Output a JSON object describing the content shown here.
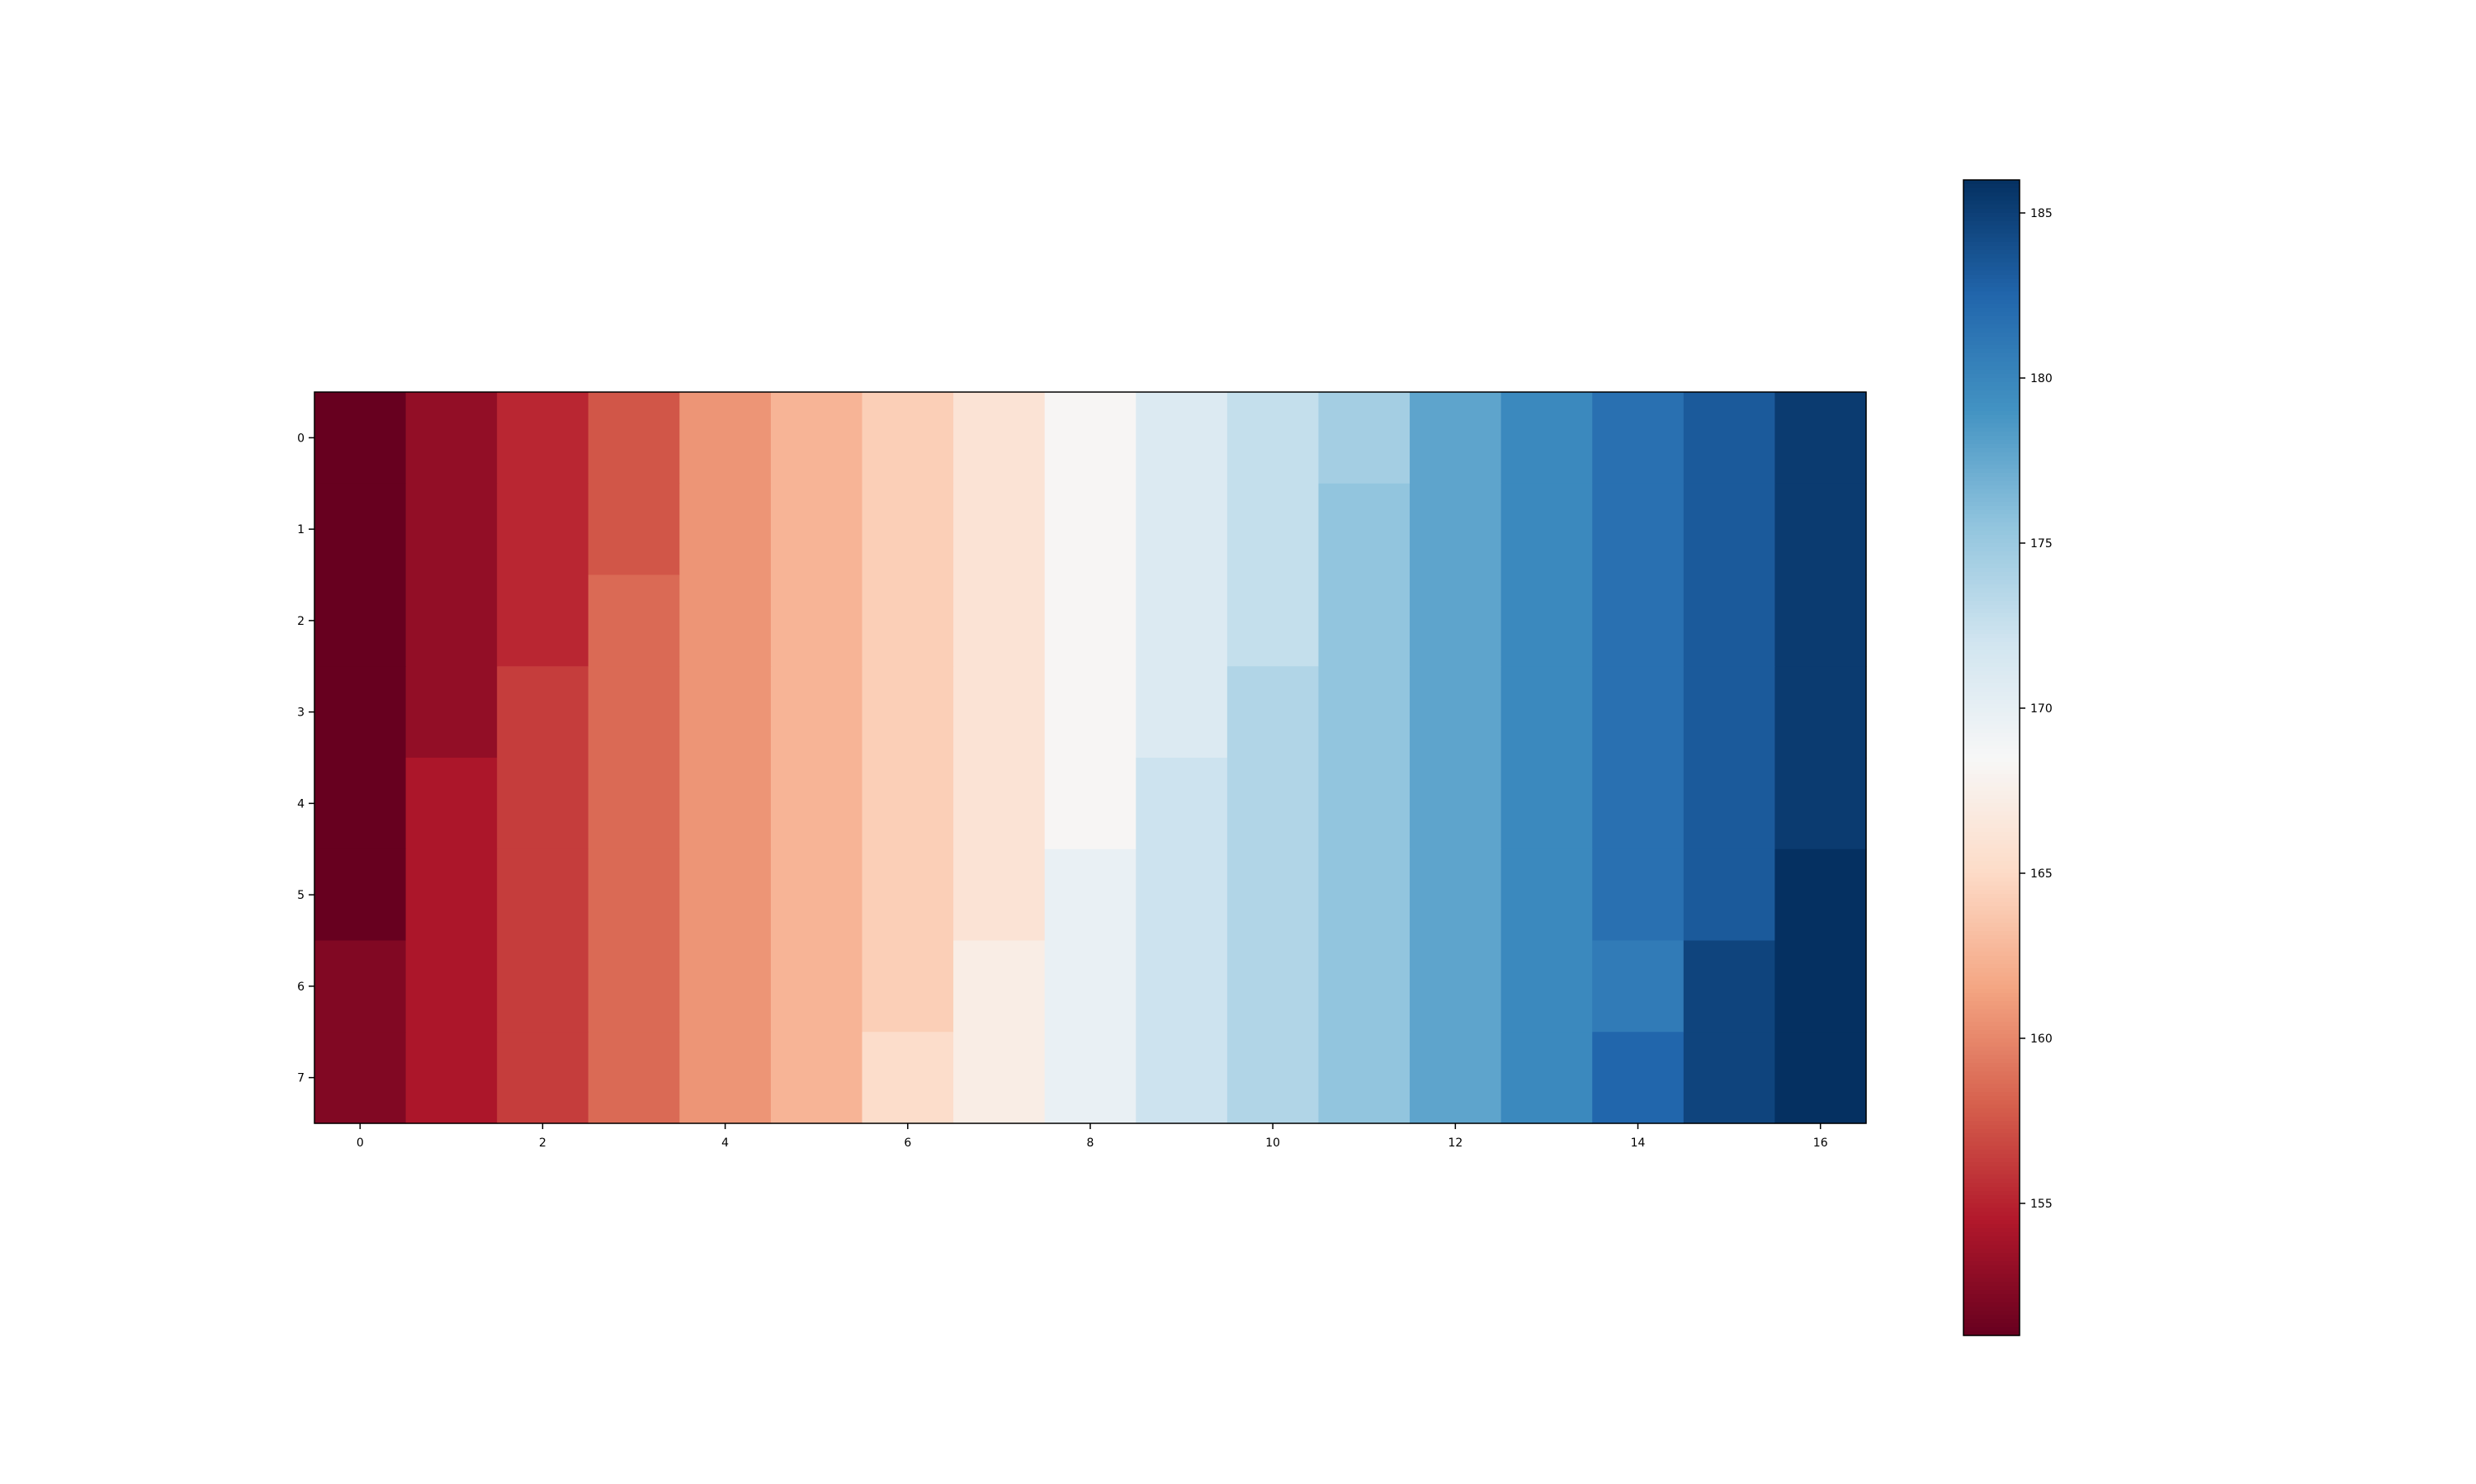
{
  "chart_data": {
    "type": "heatmap",
    "colormap": "RdBu",
    "x_ticks": [
      "0",
      "2",
      "4",
      "6",
      "8",
      "10",
      "12",
      "14",
      "16"
    ],
    "y_ticks": [
      "0",
      "1",
      "2",
      "3",
      "4",
      "5",
      "6",
      "7"
    ],
    "colorbar": {
      "range": [
        151,
        186
      ],
      "ticks": [
        "155",
        "160",
        "165",
        "170",
        "175",
        "180",
        "185"
      ]
    },
    "values": [
      [
        151.0,
        153.0,
        155.2,
        157.5,
        160.7,
        162.5,
        164.2,
        166.0,
        168.3,
        171.0,
        172.7,
        174.5,
        177.8,
        179.8,
        181.7,
        183.3,
        185.3
      ],
      [
        151.0,
        153.0,
        155.2,
        157.5,
        160.7,
        162.5,
        164.2,
        166.0,
        168.3,
        171.0,
        172.7,
        175.5,
        177.8,
        179.8,
        181.7,
        183.3,
        185.3
      ],
      [
        151.0,
        153.0,
        155.2,
        158.5,
        160.7,
        162.5,
        164.2,
        166.0,
        168.3,
        171.0,
        172.7,
        175.5,
        177.8,
        179.8,
        181.7,
        183.3,
        185.3
      ],
      [
        151.0,
        153.0,
        156.3,
        158.5,
        160.7,
        162.5,
        164.2,
        166.0,
        168.3,
        171.0,
        173.8,
        175.5,
        177.8,
        179.8,
        181.7,
        183.3,
        185.3
      ],
      [
        151.0,
        154.2,
        156.3,
        158.5,
        160.7,
        162.5,
        164.2,
        166.0,
        168.3,
        172.2,
        173.8,
        175.5,
        177.8,
        179.8,
        181.7,
        183.3,
        185.3
      ],
      [
        151.0,
        154.2,
        156.3,
        158.5,
        160.7,
        162.5,
        164.2,
        166.0,
        169.8,
        172.2,
        173.8,
        175.5,
        177.8,
        179.8,
        181.7,
        183.3,
        186.0
      ],
      [
        152.2,
        154.2,
        156.3,
        158.5,
        160.7,
        162.5,
        164.2,
        167.2,
        169.8,
        172.2,
        173.8,
        175.5,
        177.8,
        179.8,
        180.9,
        184.7,
        186.0
      ],
      [
        152.2,
        154.2,
        156.3,
        158.5,
        160.7,
        162.5,
        165.3,
        167.2,
        169.8,
        172.2,
        173.8,
        175.5,
        177.8,
        179.8,
        182.5,
        184.7,
        186.0
      ]
    ]
  }
}
